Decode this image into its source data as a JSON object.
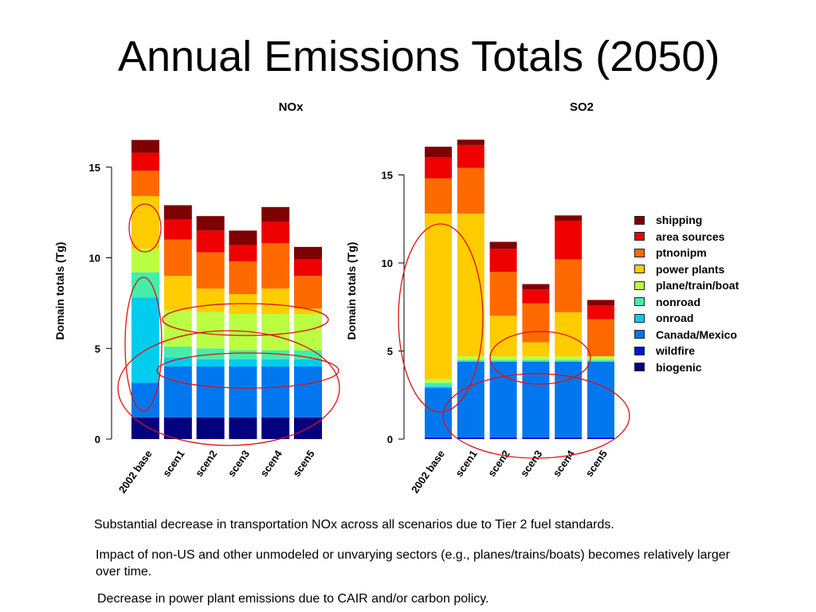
{
  "slide": {
    "title": "Annual Emissions Totals (2050)",
    "notes": [
      "Substantial decrease in transportation NOx across all scenarios due to Tier 2 fuel standards.",
      "Impact of non-US and other unmodeled or unvarying sectors (e.g., planes/trains/boats) becomes relatively larger over time.",
      "Decrease in power plant emissions due to CAIR and/or carbon policy."
    ]
  },
  "legend": [
    {
      "name": "shipping",
      "color": "#7f0000"
    },
    {
      "name": "area sources",
      "color": "#ee0000"
    },
    {
      "name": "ptnonipm",
      "color": "#ff6a00"
    },
    {
      "name": "power plants",
      "color": "#ffcc00"
    },
    {
      "name": "plane/train/boat",
      "color": "#bbff44"
    },
    {
      "name": "nonroad",
      "color": "#44eeaa"
    },
    {
      "name": "onroad",
      "color": "#00ccee"
    },
    {
      "name": "Canada/Mexico",
      "color": "#0077ee"
    },
    {
      "name": "wildfire",
      "color": "#0011dd"
    },
    {
      "name": "biogenic",
      "color": "#000080"
    }
  ],
  "chart_data": [
    {
      "type": "bar",
      "stacked": true,
      "title": "NOx",
      "ylabel": "Domain totals (Tg)",
      "xlabel": "",
      "ylim": [
        0,
        16.5
      ],
      "yticks": [
        0,
        5,
        10,
        15
      ],
      "categories": [
        "2002 base",
        "scen1",
        "scen2",
        "scen3",
        "scen4",
        "scen5"
      ],
      "series": [
        {
          "name": "biogenic",
          "values": [
            1.2,
            1.2,
            1.2,
            1.2,
            1.2,
            1.2
          ]
        },
        {
          "name": "wildfire",
          "values": [
            0.0,
            0.0,
            0.0,
            0.0,
            0.0,
            0.0
          ]
        },
        {
          "name": "Canada/Mexico",
          "values": [
            1.9,
            2.8,
            2.8,
            2.8,
            2.8,
            2.8
          ]
        },
        {
          "name": "onroad",
          "values": [
            4.7,
            0.5,
            0.4,
            0.4,
            0.4,
            0.4
          ]
        },
        {
          "name": "nonroad",
          "values": [
            1.4,
            0.6,
            0.6,
            0.5,
            0.5,
            0.5
          ]
        },
        {
          "name": "plane/train/boat",
          "values": [
            1.3,
            2.0,
            2.0,
            2.0,
            2.0,
            2.0
          ]
        },
        {
          "name": "power plants",
          "values": [
            2.9,
            1.9,
            1.3,
            1.1,
            1.4,
            0.3
          ]
        },
        {
          "name": "ptnonipm",
          "values": [
            1.4,
            2.0,
            2.0,
            1.8,
            2.5,
            1.8
          ]
        },
        {
          "name": "area sources",
          "values": [
            1.0,
            1.1,
            1.2,
            0.9,
            1.2,
            0.9
          ]
        },
        {
          "name": "shipping",
          "values": [
            0.7,
            0.8,
            0.8,
            0.8,
            0.8,
            0.7
          ]
        }
      ]
    },
    {
      "type": "bar",
      "stacked": true,
      "title": "SO2",
      "ylabel": "Domain totals (Tg)",
      "xlabel": "",
      "ylim": [
        0,
        17
      ],
      "yticks": [
        0,
        5,
        10,
        15
      ],
      "categories": [
        "2002 base",
        "scen1",
        "scen2",
        "scen3",
        "scen4",
        "scen5"
      ],
      "series": [
        {
          "name": "biogenic",
          "values": [
            0.0,
            0.0,
            0.0,
            0.0,
            0.0,
            0.0
          ]
        },
        {
          "name": "wildfire",
          "values": [
            0.1,
            0.1,
            0.1,
            0.1,
            0.1,
            0.1
          ]
        },
        {
          "name": "Canada/Mexico",
          "values": [
            2.8,
            4.3,
            4.3,
            4.3,
            4.3,
            4.3
          ]
        },
        {
          "name": "onroad",
          "values": [
            0.1,
            0.0,
            0.0,
            0.0,
            0.0,
            0.0
          ]
        },
        {
          "name": "nonroad",
          "values": [
            0.2,
            0.1,
            0.1,
            0.1,
            0.1,
            0.1
          ]
        },
        {
          "name": "plane/train/boat",
          "values": [
            0.2,
            0.2,
            0.2,
            0.2,
            0.2,
            0.2
          ]
        },
        {
          "name": "power plants",
          "values": [
            9.4,
            8.1,
            2.3,
            0.8,
            2.5,
            0.0
          ]
        },
        {
          "name": "ptnonipm",
          "values": [
            2.0,
            2.6,
            2.5,
            2.2,
            3.0,
            2.1
          ]
        },
        {
          "name": "area sources",
          "values": [
            1.2,
            1.3,
            1.3,
            0.8,
            2.2,
            0.8
          ]
        },
        {
          "name": "shipping",
          "values": [
            0.6,
            0.3,
            0.4,
            0.3,
            0.3,
            0.3
          ]
        }
      ]
    }
  ]
}
